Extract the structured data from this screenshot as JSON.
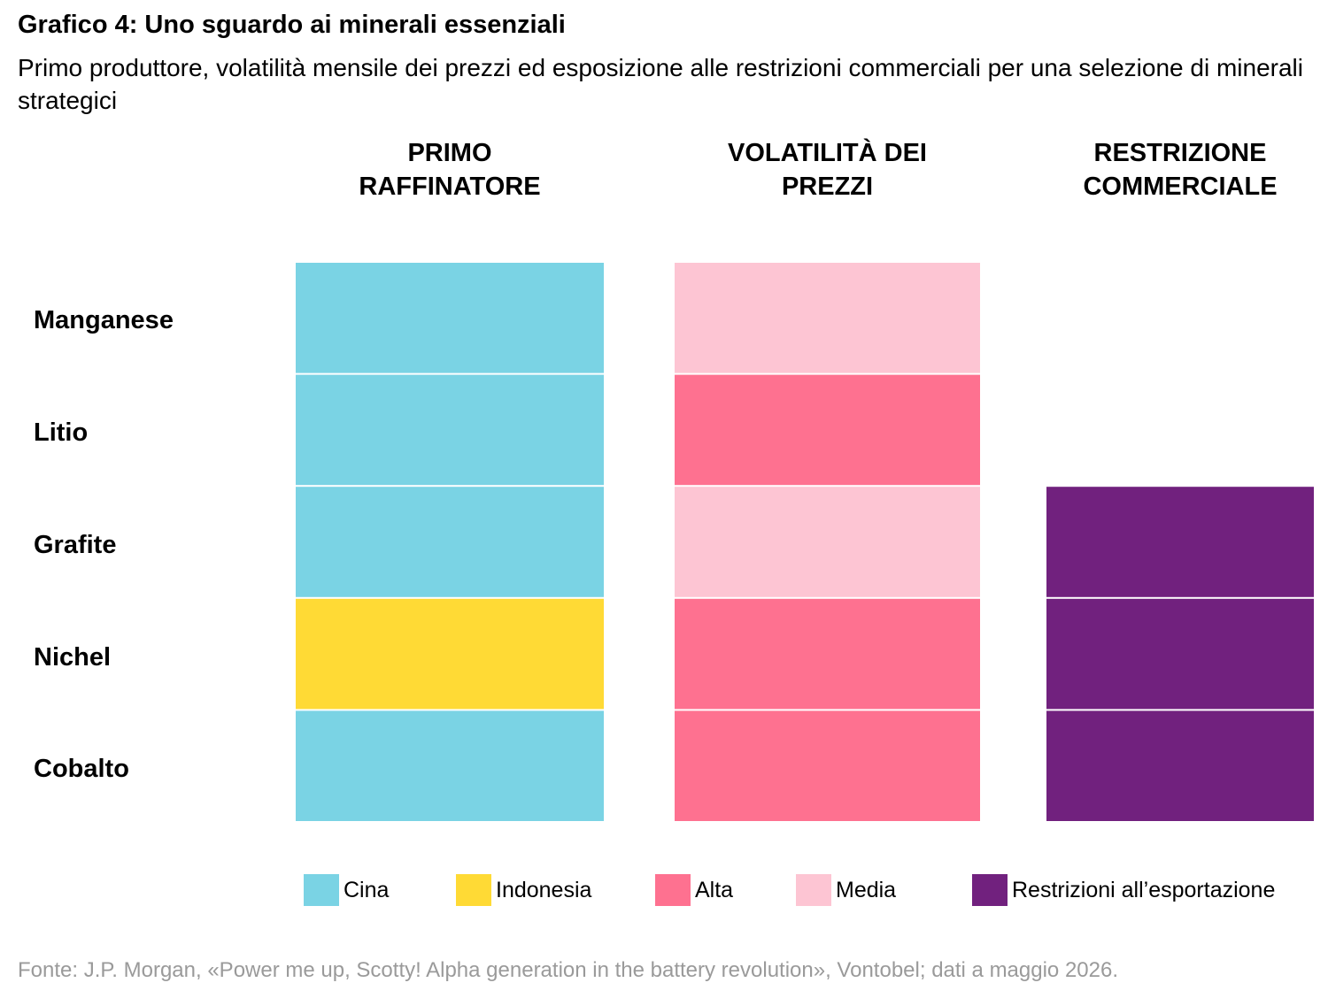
{
  "title": "Grafico 4: Uno sguardo ai minerali essenziali",
  "subtitle": "Primo produttore, volatilità mensile dei prezzi ed esposizione alle restrizioni commerciali per una selezione di minerali strategici",
  "source": "Fonte: J.P. Morgan, «Power me up, Scotty! Alpha generation in the battery revolution», Vontobel; dati a maggio 2026.",
  "colors": {
    "Cina": "#7AD3E4",
    "Indonesia": "#FFDA35",
    "Alta": "#FE7190",
    "Media": "#FDC5D3",
    "Restrizioni": "#71217E"
  },
  "chart_data": {
    "type": "table",
    "columns": [
      {
        "line1": "PRIMO",
        "line2": "RAFFINATORE"
      },
      {
        "line1": "VOLATILITÀ DEI",
        "line2": "PREZZI"
      },
      {
        "line1": "RESTRIZIONE",
        "line2": "COMMERCIALE"
      }
    ],
    "rows": [
      "Manganese",
      "Litio",
      "Grafite",
      "Nichel",
      "Cobalto"
    ],
    "cells": [
      [
        "Cina",
        "Media",
        null
      ],
      [
        "Cina",
        "Alta",
        null
      ],
      [
        "Cina",
        "Media",
        "Restrizioni"
      ],
      [
        "Indonesia",
        "Alta",
        "Restrizioni"
      ],
      [
        "Cina",
        "Alta",
        "Restrizioni"
      ]
    ],
    "legend": [
      {
        "key": "Cina",
        "label": "Cina"
      },
      {
        "key": "Indonesia",
        "label": "Indonesia"
      },
      {
        "key": "Alta",
        "label": "Alta"
      },
      {
        "key": "Media",
        "label": "Media"
      },
      {
        "key": "Restrizioni",
        "label": "Restrizioni all’esportazione"
      }
    ]
  }
}
